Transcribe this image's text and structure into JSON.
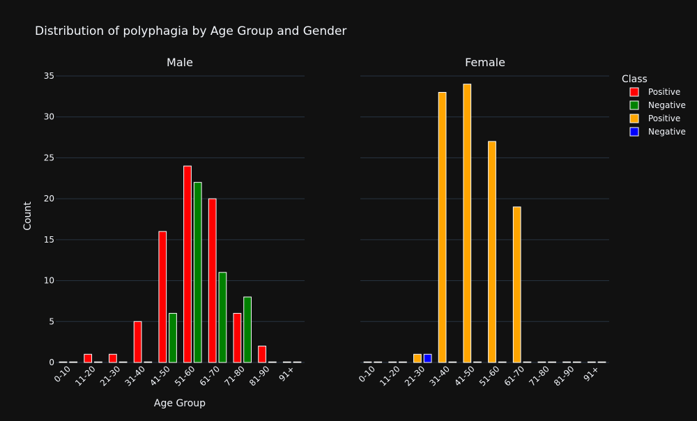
{
  "chart_data": {
    "type": "bar",
    "title": "Distribution of polyphagia by Age Group and Gender",
    "xlabel": "Age Group",
    "ylabel": "Count",
    "ylim": [
      0,
      35
    ],
    "yticks": [
      "0",
      "5",
      "10",
      "15",
      "20",
      "25",
      "30",
      "35"
    ],
    "categories": [
      "0-10",
      "11-20",
      "21-30",
      "31-40",
      "41-50",
      "51-60",
      "61-70",
      "71-80",
      "81-90",
      "91+"
    ],
    "grid": true,
    "legend": {
      "title": "Class",
      "placement": "top-right",
      "entries": [
        {
          "label": "Positive",
          "color": "#ff0000"
        },
        {
          "label": "Negative",
          "color": "#008000"
        },
        {
          "label": "Positive",
          "color": "#ffa500"
        },
        {
          "label": "Negative",
          "color": "#0000ff"
        }
      ]
    },
    "panels": [
      {
        "title": "Male",
        "series": [
          {
            "name": "Positive",
            "color": "#ff0000",
            "values": [
              0,
              1,
              1,
              5,
              16,
              24,
              20,
              6,
              2,
              0
            ]
          },
          {
            "name": "Negative",
            "color": "#008000",
            "values": [
              0,
              0,
              0,
              0,
              6,
              22,
              11,
              8,
              0,
              0
            ]
          }
        ]
      },
      {
        "title": "Female",
        "series": [
          {
            "name": "Positive",
            "color": "#ffa500",
            "values": [
              0,
              0,
              1,
              33,
              34,
              27,
              19,
              0,
              0,
              0
            ]
          },
          {
            "name": "Negative",
            "color": "#0000ff",
            "values": [
              0,
              0,
              1,
              0,
              0,
              0,
              0,
              0,
              0,
              0
            ]
          }
        ]
      }
    ]
  }
}
